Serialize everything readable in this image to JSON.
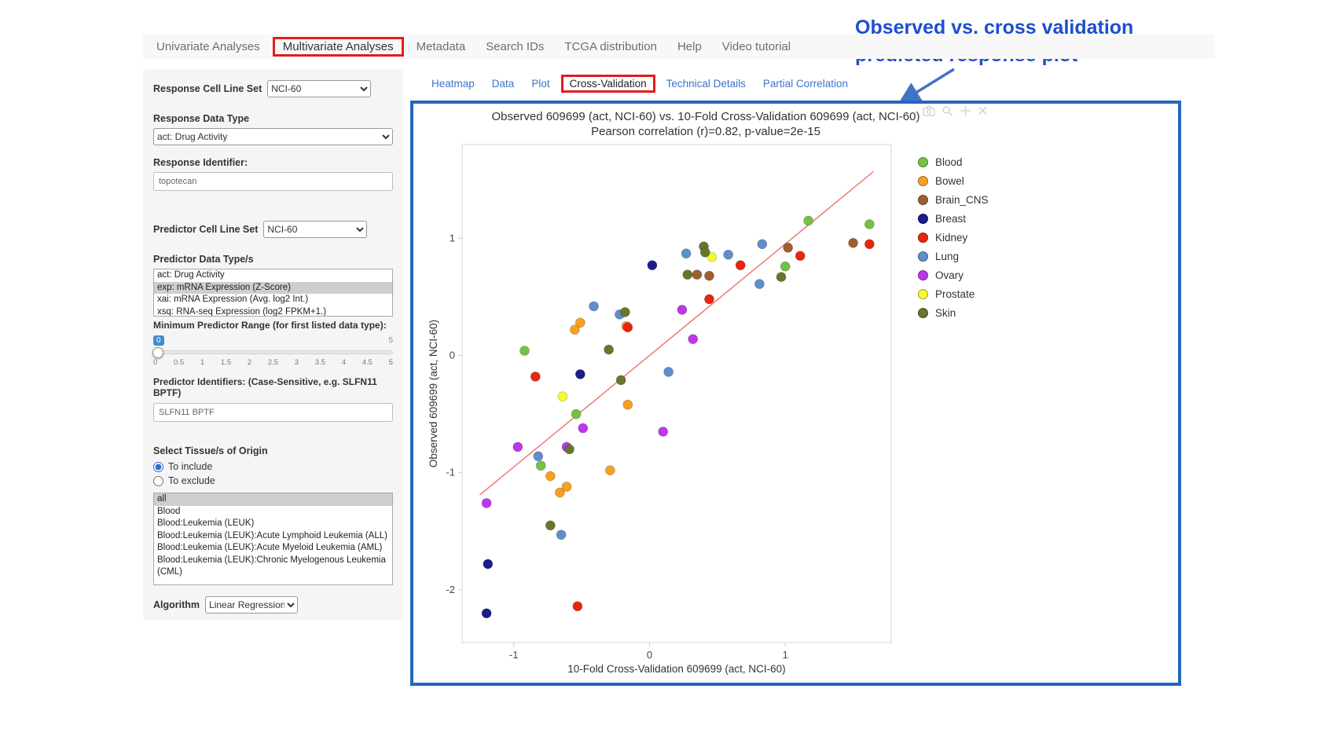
{
  "annotation": {
    "line1": "Observed vs. cross validation",
    "line2": "predicted response plot"
  },
  "topnav": {
    "tabs": [
      "Univariate Analyses",
      "Multivariate Analyses",
      "Metadata",
      "Search IDs",
      "TCGA distribution",
      "Help",
      "Video tutorial"
    ],
    "active_tab": "Multivariate Analyses"
  },
  "subtabs": [
    "Heatmap",
    "Data",
    "Plot",
    "Cross-Validation",
    "Technical Details",
    "Partial Correlation"
  ],
  "subtabs_active": "Cross-Validation",
  "sidebar": {
    "response_cell_line_set": {
      "label": "Response Cell Line Set",
      "value": "NCI-60"
    },
    "response_data_type": {
      "label": "Response Data Type",
      "value": "act: Drug Activity"
    },
    "response_identifier": {
      "label": "Response Identifier:",
      "value": "topotecan"
    },
    "predictor_cell_line_set": {
      "label": "Predictor Cell Line Set",
      "value": "NCI-60"
    },
    "predictor_data_types": {
      "label": "Predictor Data Type/s",
      "options": [
        "act: Drug Activity",
        "exp: mRNA Expression (Z-Score)",
        "xai: mRNA Expression (Avg. log2 Int.)",
        "xsq: RNA-seq Expression (log2 FPKM+1.)"
      ],
      "selected": "exp: mRNA Expression (Z-Score)"
    },
    "min_predictor_range": {
      "label": "Minimum Predictor Range (for first listed data type):",
      "value": "0",
      "max": "5",
      "ticks": [
        "0",
        "0.5",
        "1",
        "1.5",
        "2",
        "2.5",
        "3",
        "3.5",
        "4",
        "4.5",
        "5"
      ]
    },
    "predictor_identifiers": {
      "label": "Predictor Identifiers: (Case-Sensitive, e.g. SLFN11 BPTF)",
      "value": "SLFN11 BPTF"
    },
    "tissue_origin": {
      "label": "Select Tissue/s of Origin",
      "radios": [
        {
          "label": "To include",
          "checked": true
        },
        {
          "label": "To exclude",
          "checked": false
        }
      ],
      "options": [
        "all",
        "Blood",
        "Blood:Leukemia (LEUK)",
        "Blood:Leukemia (LEUK):Acute Lymphoid Leukemia (ALL)",
        "Blood:Leukemia (LEUK):Acute Myeloid Leukemia (AML)",
        "Blood:Leukemia (LEUK):Chronic Myelogenous Leukemia (CML)"
      ],
      "selected": "all"
    },
    "algorithm": {
      "label": "Algorithm",
      "value": "Linear Regression"
    }
  },
  "plot_toolbar": {
    "icons": [
      "camera-icon",
      "zoom-icon",
      "pan-icon",
      "close-icon"
    ]
  },
  "chart_data": {
    "type": "scatter",
    "title": "Observed 609699 (act, NCI-60) vs. 10-Fold Cross-Validation 609699 (act, NCI-60)",
    "subtitle": "Pearson correlation (r)=0.82, p-value=2e-15",
    "xlabel": "10-Fold Cross-Validation 609699 (act, NCI-60)",
    "ylabel": "Observed 609699 (act, NCI-60)",
    "xlim": [
      -1.38,
      1.78
    ],
    "ylim": [
      -2.45,
      1.8
    ],
    "xticks": [
      -1,
      0,
      1
    ],
    "yticks": [
      -2,
      -1,
      0,
      1
    ],
    "grid": false,
    "legend_position": "right",
    "regression_line": {
      "x1": -1.25,
      "y1": -1.19,
      "x2": 1.65,
      "y2": 1.57,
      "color": "#ef8076"
    },
    "series": [
      {
        "name": "Blood",
        "color": "#76c144",
        "points": [
          [
            -0.92,
            0.04
          ],
          [
            -0.8,
            -0.94
          ],
          [
            -0.54,
            -0.5
          ],
          [
            1.0,
            0.76
          ],
          [
            1.17,
            1.15
          ],
          [
            1.62,
            1.12
          ]
        ]
      },
      {
        "name": "Bowel",
        "color": "#f5a023",
        "points": [
          [
            -0.55,
            0.22
          ],
          [
            -0.51,
            0.28
          ],
          [
            -0.17,
            0.25
          ],
          [
            -0.16,
            -0.42
          ],
          [
            -0.29,
            -0.98
          ],
          [
            -0.73,
            -1.03
          ],
          [
            -0.66,
            -1.17
          ],
          [
            -0.61,
            -1.12
          ]
        ]
      },
      {
        "name": "Brain_CNS",
        "color": "#9e5f30",
        "points": [
          [
            0.35,
            0.69
          ],
          [
            0.44,
            0.68
          ],
          [
            1.02,
            0.92
          ],
          [
            1.5,
            0.96
          ]
        ]
      },
      {
        "name": "Breast",
        "color": "#1c1c8a",
        "points": [
          [
            0.02,
            0.77
          ],
          [
            -0.51,
            -0.16
          ],
          [
            -1.19,
            -1.78
          ],
          [
            -1.2,
            -2.2
          ]
        ]
      },
      {
        "name": "Kidney",
        "color": "#e8250f",
        "points": [
          [
            -0.84,
            -0.18
          ],
          [
            -0.16,
            0.24
          ],
          [
            0.44,
            0.48
          ],
          [
            0.67,
            0.77
          ],
          [
            1.11,
            0.85
          ],
          [
            1.62,
            0.95
          ],
          [
            -0.53,
            -2.14
          ]
        ]
      },
      {
        "name": "Lung",
        "color": "#5e8fca",
        "points": [
          [
            -0.41,
            0.42
          ],
          [
            -0.22,
            0.35
          ],
          [
            -0.82,
            -0.86
          ],
          [
            -0.65,
            -1.53
          ],
          [
            0.27,
            0.87
          ],
          [
            0.14,
            -0.14
          ],
          [
            0.58,
            0.86
          ],
          [
            0.83,
            0.95
          ],
          [
            0.81,
            0.61
          ]
        ]
      },
      {
        "name": "Ovary",
        "color": "#bd38ea",
        "points": [
          [
            -0.97,
            -0.78
          ],
          [
            -1.2,
            -1.26
          ],
          [
            -0.61,
            -0.78
          ],
          [
            -0.49,
            -0.62
          ],
          [
            0.1,
            -0.65
          ],
          [
            0.24,
            0.39
          ],
          [
            0.32,
            0.14
          ]
        ]
      },
      {
        "name": "Prostate",
        "color": "#f8f832",
        "points": [
          [
            -0.64,
            -0.35
          ],
          [
            0.46,
            0.84
          ]
        ]
      },
      {
        "name": "Skin",
        "color": "#66772b",
        "points": [
          [
            -0.73,
            -1.45
          ],
          [
            -0.59,
            -0.8
          ],
          [
            -0.3,
            0.05
          ],
          [
            -0.18,
            0.37
          ],
          [
            -0.21,
            -0.21
          ],
          [
            0.28,
            0.69
          ],
          [
            0.4,
            0.93
          ],
          [
            0.41,
            0.88
          ],
          [
            0.97,
            0.67
          ]
        ]
      }
    ]
  }
}
